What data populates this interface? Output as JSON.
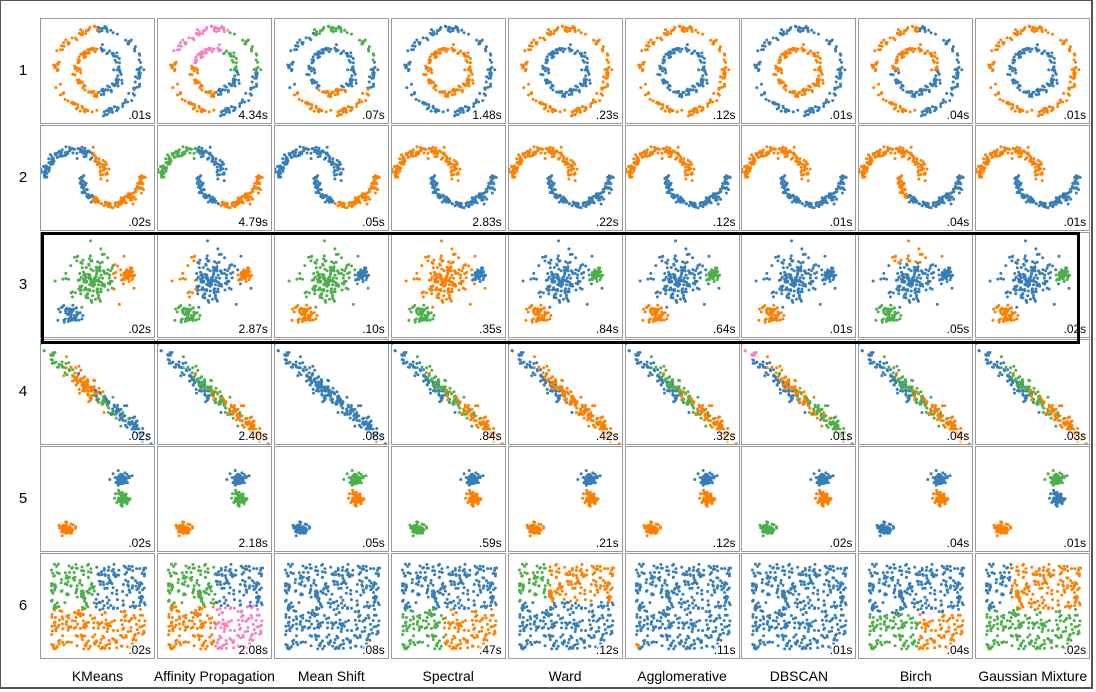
{
  "chart_data": {
    "type": "scatter",
    "title": "",
    "row_labels": [
      "1",
      "2",
      "3",
      "4",
      "5",
      "6"
    ],
    "column_labels": [
      "KMeans",
      "Affinity Propagation",
      "Mean Shift",
      "Spectral",
      "Ward",
      "Agglomerative",
      "DBSCAN",
      "Birch",
      "Gaussian Mixture"
    ],
    "datasets": [
      "circles",
      "moons",
      "varied",
      "aniso",
      "blobs",
      "no_structure"
    ],
    "colors": {
      "blue": "#377eb8",
      "orange": "#ff7f00",
      "green": "#4daf4a",
      "pink": "#f781bf"
    },
    "highlighted_row": "3",
    "timings_seconds": [
      [
        ".01s",
        "4.34s",
        ".07s",
        "1.48s",
        ".23s",
        ".12s",
        ".01s",
        ".04s",
        ".01s"
      ],
      [
        ".02s",
        "4.79s",
        ".05s",
        "2.83s",
        ".22s",
        ".12s",
        ".01s",
        ".04s",
        ".01s"
      ],
      [
        ".02s",
        "2.87s",
        ".10s",
        ".35s",
        ".84s",
        ".64s",
        ".01s",
        ".05s",
        ".02s"
      ],
      [
        ".02s",
        "2.40s",
        ".08s",
        ".84s",
        ".42s",
        ".32s",
        ".01s",
        ".04s",
        ".03s"
      ],
      [
        ".02s",
        "2.18s",
        ".05s",
        ".59s",
        ".21s",
        ".12s",
        ".02s",
        ".04s",
        ".01s"
      ],
      [
        ".02s",
        "2.08s",
        ".08s",
        ".47s",
        ".12s",
        ".11s",
        ".01s",
        ".04s",
        ".02s"
      ]
    ]
  }
}
